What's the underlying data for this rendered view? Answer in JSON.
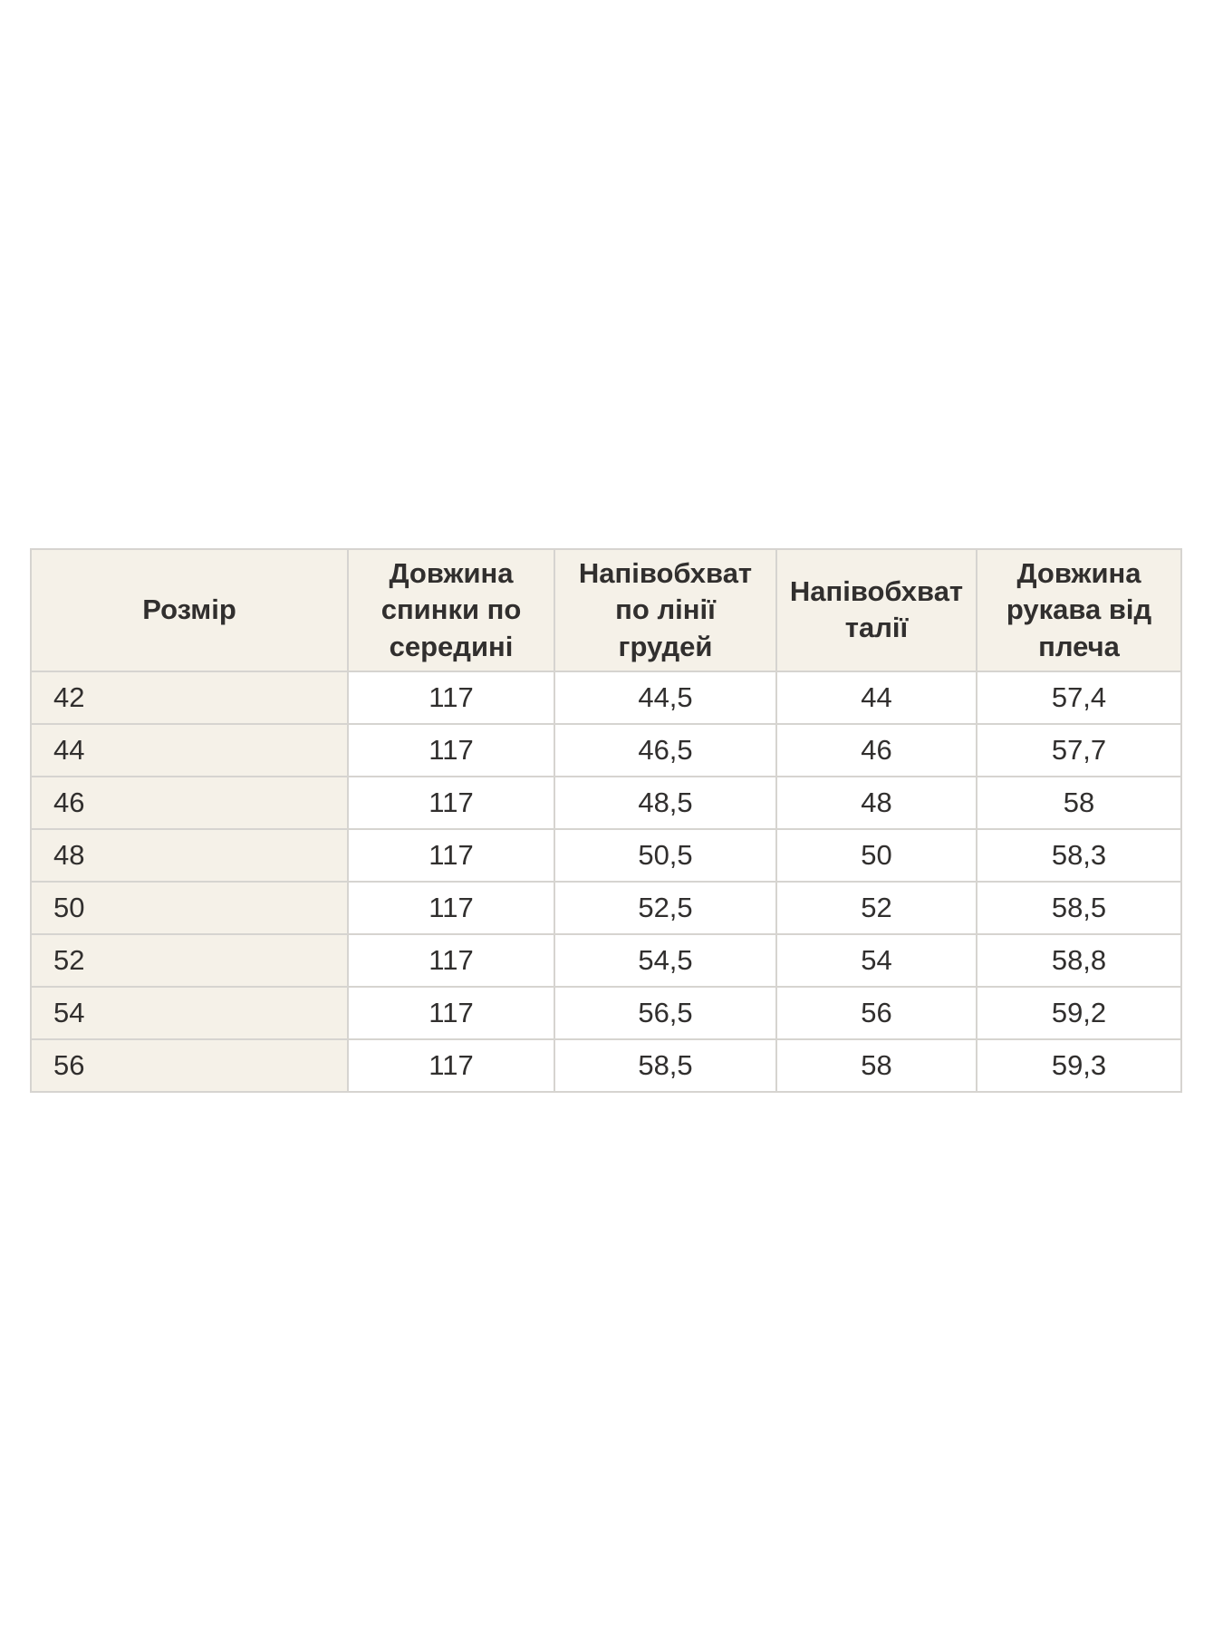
{
  "table": {
    "columns": [
      "Розмір",
      "Довжина спинки по середині",
      "Напівобхват по лінії грудей",
      "Напівобхват талії",
      "Довжина рукава від плеча"
    ],
    "rows": [
      [
        "42",
        "117",
        "44,5",
        "44",
        "57,4"
      ],
      [
        "44",
        "117",
        "46,5",
        "46",
        "57,7"
      ],
      [
        "46",
        "117",
        "48,5",
        "48",
        "58"
      ],
      [
        "48",
        "117",
        "50,5",
        "50",
        "58,3"
      ],
      [
        "50",
        "117",
        "52,5",
        "52",
        "58,5"
      ],
      [
        "52",
        "117",
        "54,5",
        "54",
        "58,8"
      ],
      [
        "54",
        "117",
        "56,5",
        "56",
        "59,2"
      ],
      [
        "56",
        "117",
        "58,5",
        "58",
        "59,3"
      ]
    ]
  },
  "colors": {
    "header_bg": "#f5f1e8",
    "row_bg": "#ffffff",
    "border": "#d6d4d0",
    "text": "#312f2e"
  }
}
